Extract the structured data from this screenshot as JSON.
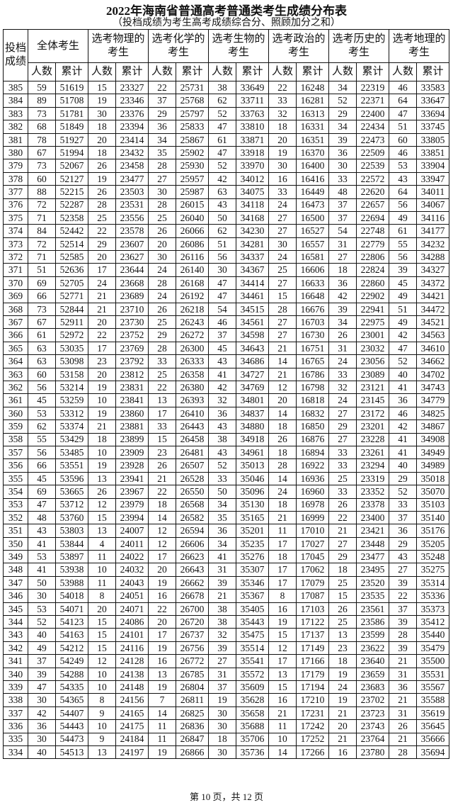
{
  "title": "2022年海南省普通高考普通类考生成绩分布表",
  "subtitle": "（投档成绩为考生高考成绩综合分、照顾加分之和）",
  "header": {
    "score_label": "投档成绩",
    "groups": [
      "全体考生",
      "选考物理的考生",
      "选考化学的考生",
      "选考生物的考生",
      "选考政治的考生",
      "选考历史的考生",
      "选考地理的考生"
    ],
    "count_label": "人数",
    "cumulative_label": "累计"
  },
  "rows": [
    [
      385,
      59,
      51619,
      15,
      23327,
      22,
      25731,
      38,
      33649,
      22,
      16248,
      34,
      22319,
      46,
      33583
    ],
    [
      384,
      89,
      51708,
      19,
      23346,
      37,
      25768,
      62,
      33711,
      33,
      16281,
      52,
      22371,
      64,
      33647
    ],
    [
      383,
      73,
      51781,
      30,
      23376,
      29,
      25797,
      52,
      33763,
      32,
      16313,
      29,
      22400,
      47,
      33694
    ],
    [
      382,
      68,
      51849,
      18,
      23394,
      36,
      25833,
      47,
      33810,
      18,
      16331,
      34,
      22434,
      51,
      33745
    ],
    [
      381,
      78,
      51927,
      20,
      23414,
      34,
      25867,
      61,
      33871,
      20,
      16351,
      39,
      22473,
      60,
      33805
    ],
    [
      380,
      67,
      51994,
      18,
      23432,
      35,
      25902,
      47,
      33918,
      19,
      16370,
      36,
      22509,
      46,
      33851
    ],
    [
      379,
      73,
      52067,
      26,
      23458,
      28,
      25930,
      52,
      33970,
      30,
      16400,
      30,
      22539,
      53,
      33904
    ],
    [
      378,
      60,
      52127,
      19,
      23477,
      27,
      25957,
      42,
      34012,
      16,
      16416,
      33,
      22572,
      43,
      33947
    ],
    [
      377,
      88,
      52215,
      26,
      23503,
      30,
      25987,
      63,
      34075,
      33,
      16449,
      48,
      22620,
      64,
      34011
    ],
    [
      376,
      72,
      52287,
      28,
      23531,
      28,
      26015,
      43,
      34118,
      24,
      16473,
      37,
      22657,
      56,
      34067
    ],
    [
      375,
      71,
      52358,
      25,
      23556,
      25,
      26040,
      50,
      34168,
      27,
      16500,
      37,
      22694,
      49,
      34116
    ],
    [
      374,
      84,
      52442,
      22,
      23578,
      26,
      26066,
      62,
      34230,
      27,
      16527,
      54,
      22748,
      61,
      34177
    ],
    [
      373,
      72,
      52514,
      29,
      23607,
      20,
      26086,
      51,
      34281,
      30,
      16557,
      31,
      22779,
      55,
      34232
    ],
    [
      372,
      71,
      52585,
      20,
      23627,
      30,
      26116,
      56,
      34337,
      24,
      16581,
      27,
      22806,
      56,
      34288
    ],
    [
      371,
      51,
      52636,
      17,
      23644,
      24,
      26140,
      30,
      34367,
      25,
      16606,
      18,
      22824,
      39,
      34327
    ],
    [
      370,
      69,
      52705,
      24,
      23668,
      28,
      26168,
      47,
      34414,
      27,
      16633,
      36,
      22860,
      45,
      34372
    ],
    [
      369,
      66,
      52771,
      21,
      23689,
      24,
      26192,
      47,
      34461,
      15,
      16648,
      42,
      22902,
      49,
      34421
    ],
    [
      368,
      73,
      52844,
      21,
      23710,
      26,
      26218,
      54,
      34515,
      28,
      16676,
      39,
      22941,
      51,
      34472
    ],
    [
      367,
      67,
      52911,
      20,
      23730,
      25,
      26243,
      46,
      34561,
      27,
      16703,
      34,
      22975,
      49,
      34521
    ],
    [
      366,
      61,
      52972,
      22,
      23752,
      29,
      26272,
      37,
      34598,
      27,
      16730,
      26,
      23001,
      42,
      34563
    ],
    [
      365,
      63,
      53035,
      17,
      23769,
      28,
      26300,
      45,
      34643,
      21,
      16751,
      31,
      23032,
      47,
      34610
    ],
    [
      364,
      63,
      53098,
      23,
      23792,
      33,
      26333,
      43,
      34686,
      14,
      16765,
      24,
      23056,
      52,
      34662
    ],
    [
      363,
      60,
      53158,
      20,
      23812,
      25,
      26358,
      41,
      34727,
      21,
      16786,
      33,
      23089,
      40,
      34702
    ],
    [
      362,
      56,
      53214,
      19,
      23831,
      22,
      26380,
      42,
      34769,
      12,
      16798,
      32,
      23121,
      41,
      34743
    ],
    [
      361,
      45,
      53259,
      10,
      23841,
      13,
      26393,
      32,
      34801,
      20,
      16818,
      24,
      23145,
      36,
      34779
    ],
    [
      360,
      53,
      53312,
      19,
      23860,
      17,
      26410,
      36,
      34837,
      14,
      16832,
      27,
      23172,
      46,
      34825
    ],
    [
      359,
      62,
      53374,
      21,
      23881,
      33,
      26443,
      43,
      34880,
      18,
      16850,
      29,
      23201,
      42,
      34867
    ],
    [
      358,
      55,
      53429,
      18,
      23899,
      15,
      26458,
      38,
      34918,
      26,
      16876,
      27,
      23228,
      41,
      34908
    ],
    [
      357,
      56,
      53485,
      10,
      23909,
      23,
      26481,
      43,
      34961,
      18,
      16894,
      33,
      23261,
      41,
      34949
    ],
    [
      356,
      66,
      53551,
      19,
      23928,
      26,
      26507,
      52,
      35013,
      28,
      16922,
      33,
      23294,
      40,
      34989
    ],
    [
      355,
      45,
      53596,
      13,
      23941,
      21,
      26528,
      33,
      35046,
      14,
      16936,
      25,
      23319,
      29,
      35018
    ],
    [
      354,
      69,
      53665,
      26,
      23967,
      22,
      26550,
      50,
      35096,
      24,
      16960,
      33,
      23352,
      52,
      35070
    ],
    [
      353,
      47,
      53712,
      12,
      23979,
      18,
      26568,
      34,
      35130,
      18,
      16978,
      26,
      23378,
      33,
      35103
    ],
    [
      352,
      48,
      53760,
      15,
      23994,
      14,
      26582,
      35,
      35165,
      21,
      16999,
      22,
      23400,
      37,
      35140
    ],
    [
      351,
      43,
      53803,
      13,
      24007,
      12,
      26594,
      36,
      35201,
      11,
      17010,
      21,
      23421,
      36,
      35176
    ],
    [
      350,
      41,
      53844,
      4,
      24011,
      12,
      26606,
      34,
      35235,
      17,
      17027,
      27,
      23448,
      29,
      35205
    ],
    [
      349,
      53,
      53897,
      11,
      24022,
      17,
      26623,
      41,
      35276,
      18,
      17045,
      29,
      23477,
      43,
      35248
    ],
    [
      348,
      41,
      53938,
      10,
      24032,
      20,
      26643,
      31,
      35307,
      17,
      17062,
      18,
      23495,
      27,
      35275
    ],
    [
      347,
      50,
      53988,
      11,
      24043,
      19,
      26662,
      39,
      35346,
      17,
      17079,
      25,
      23520,
      39,
      35314
    ],
    [
      346,
      30,
      54018,
      8,
      24051,
      16,
      26678,
      21,
      35367,
      8,
      17087,
      15,
      23535,
      22,
      35336
    ],
    [
      345,
      53,
      54071,
      20,
      24071,
      22,
      26700,
      38,
      35405,
      16,
      17103,
      26,
      23561,
      37,
      35373
    ],
    [
      344,
      52,
      54123,
      15,
      24086,
      20,
      26720,
      38,
      35443,
      19,
      17122,
      25,
      23586,
      39,
      35412
    ],
    [
      343,
      40,
      54163,
      15,
      24101,
      17,
      26737,
      32,
      35475,
      15,
      17137,
      13,
      23599,
      28,
      35440
    ],
    [
      342,
      49,
      54212,
      15,
      24116,
      19,
      26756,
      39,
      35514,
      12,
      17149,
      23,
      23622,
      39,
      35479
    ],
    [
      341,
      37,
      54249,
      12,
      24128,
      16,
      26772,
      27,
      35541,
      17,
      17166,
      18,
      23640,
      21,
      35500
    ],
    [
      340,
      39,
      54288,
      10,
      24138,
      13,
      26785,
      31,
      35572,
      13,
      17179,
      19,
      23659,
      31,
      35531
    ],
    [
      339,
      47,
      54335,
      10,
      24148,
      19,
      26804,
      37,
      35609,
      15,
      17194,
      24,
      23683,
      36,
      35567
    ],
    [
      338,
      30,
      54365,
      8,
      24156,
      7,
      26811,
      19,
      35628,
      16,
      17210,
      19,
      23702,
      21,
      35588
    ],
    [
      337,
      42,
      54407,
      9,
      24165,
      14,
      26825,
      30,
      35658,
      21,
      17231,
      21,
      23723,
      31,
      35619
    ],
    [
      336,
      36,
      54443,
      10,
      24175,
      11,
      26836,
      30,
      35688,
      11,
      17242,
      20,
      23743,
      26,
      35645
    ],
    [
      335,
      30,
      54473,
      9,
      24184,
      11,
      26847,
      18,
      35706,
      10,
      17252,
      21,
      23764,
      21,
      35666
    ],
    [
      334,
      40,
      54513,
      13,
      24197,
      19,
      26866,
      30,
      35736,
      14,
      17266,
      16,
      23780,
      28,
      35694
    ]
  ],
  "footer": "第 10 页，共 12 页"
}
